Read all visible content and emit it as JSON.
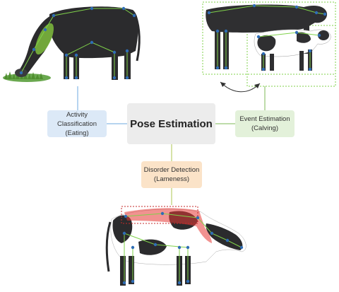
{
  "center": {
    "title": "Pose Estimation"
  },
  "activity": {
    "line1": "Activity Classification",
    "line2": "(Eating)"
  },
  "event": {
    "line1": "Event Estimation",
    "line2": "(Calving)"
  },
  "disorder": {
    "line1": "Disorder Detection",
    "line2": "(Lameness)"
  },
  "colors": {
    "activity_fill": "#dce9f7",
    "activity_link": "#9ec6ea",
    "event_fill": "#e3f1da",
    "event_link": "#a9d18e",
    "disorder_fill": "#fbe3c8",
    "disorder_link": "#c8d98a",
    "center_fill": "#ececec",
    "keypoint": "#2f6db5",
    "skeleton": "#7fd14a"
  }
}
